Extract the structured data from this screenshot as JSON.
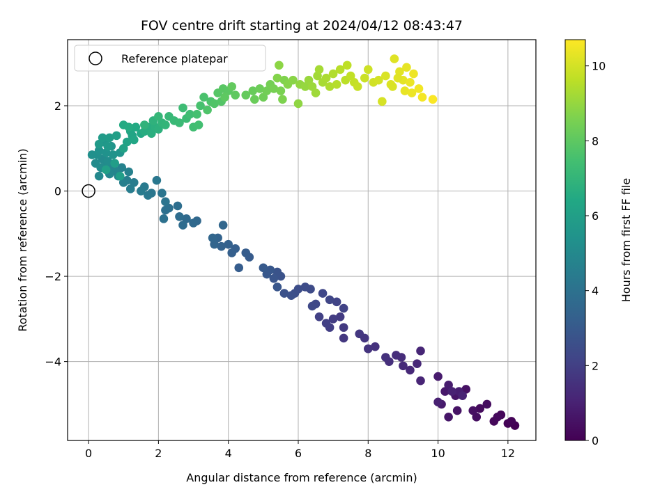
{
  "chart_data": {
    "type": "scatter",
    "title": "FOV centre drift starting at 2024/04/12 08:43:47",
    "xlabel": "Angular distance from reference (arcmin)",
    "ylabel": "Rotation from reference (arcmin)",
    "xlim": [
      -0.6,
      12.8
    ],
    "ylim": [
      -5.85,
      3.55
    ],
    "xticks": [
      0,
      2,
      4,
      6,
      8,
      10,
      12
    ],
    "yticks": [
      -4,
      -2,
      0,
      2
    ],
    "xtick_labels": [
      "0",
      "2",
      "4",
      "6",
      "8",
      "10",
      "12"
    ],
    "ytick_labels": [
      "−4",
      "−2",
      "0",
      "2"
    ],
    "grid": true,
    "legend": {
      "placement": "top-left",
      "entry": "Reference platepar",
      "marker": "open-circle"
    },
    "reference_point": {
      "x": 0,
      "y": 0
    },
    "colormap": "viridis",
    "colorbar": {
      "label": "Hours from first FF file",
      "range": [
        0,
        10.7
      ],
      "ticks": [
        0,
        2,
        4,
        6,
        8,
        10
      ],
      "tick_labels": [
        "0",
        "2",
        "4",
        "6",
        "8",
        "10"
      ]
    },
    "points": [
      [
        12.2,
        -5.5,
        0.0
      ],
      [
        12.0,
        -5.45,
        0.05
      ],
      [
        12.1,
        -5.4,
        0.1
      ],
      [
        11.8,
        -5.25,
        0.15
      ],
      [
        11.6,
        -5.4,
        0.2
      ],
      [
        11.7,
        -5.3,
        0.25
      ],
      [
        11.2,
        -5.1,
        0.3
      ],
      [
        11.4,
        -5.0,
        0.35
      ],
      [
        11.1,
        -5.3,
        0.4
      ],
      [
        11.0,
        -5.15,
        0.45
      ],
      [
        10.8,
        -4.65,
        0.5
      ],
      [
        10.55,
        -5.15,
        0.55
      ],
      [
        10.5,
        -4.8,
        0.6
      ],
      [
        10.3,
        -5.3,
        0.65
      ],
      [
        10.2,
        -4.7,
        0.7
      ],
      [
        10.1,
        -5.0,
        0.75
      ],
      [
        10.0,
        -4.35,
        0.8
      ],
      [
        10.3,
        -4.55,
        0.85
      ],
      [
        10.6,
        -4.7,
        0.9
      ],
      [
        10.0,
        -4.95,
        0.95
      ],
      [
        10.4,
        -4.7,
        1.0
      ],
      [
        10.7,
        -4.8,
        1.05
      ],
      [
        9.5,
        -4.45,
        1.1
      ],
      [
        9.5,
        -3.75,
        1.15
      ],
      [
        9.4,
        -4.05,
        1.2
      ],
      [
        9.2,
        -4.2,
        1.25
      ],
      [
        9.0,
        -4.1,
        1.3
      ],
      [
        8.95,
        -3.9,
        1.35
      ],
      [
        8.8,
        -3.85,
        1.4
      ],
      [
        8.6,
        -4.0,
        1.45
      ],
      [
        8.5,
        -3.9,
        1.5
      ],
      [
        8.2,
        -3.65,
        1.55
      ],
      [
        8.0,
        -3.7,
        1.6
      ],
      [
        7.9,
        -3.45,
        1.65
      ],
      [
        7.75,
        -3.35,
        1.7
      ],
      [
        7.3,
        -3.45,
        1.75
      ],
      [
        7.3,
        -3.2,
        1.8
      ],
      [
        7.2,
        -2.95,
        1.85
      ],
      [
        7.0,
        -3.0,
        1.9
      ],
      [
        6.9,
        -3.2,
        1.95
      ],
      [
        6.8,
        -3.1,
        2.0
      ],
      [
        6.6,
        -2.95,
        2.05
      ],
      [
        7.3,
        -2.75,
        2.1
      ],
      [
        7.1,
        -2.6,
        2.15
      ],
      [
        6.9,
        -2.55,
        2.2
      ],
      [
        6.7,
        -2.4,
        2.25
      ],
      [
        6.5,
        -2.65,
        2.3
      ],
      [
        6.4,
        -2.7,
        2.35
      ],
      [
        6.35,
        -2.3,
        2.4
      ],
      [
        6.2,
        -2.25,
        2.45
      ],
      [
        6.0,
        -2.3,
        2.5
      ],
      [
        5.9,
        -2.4,
        2.55
      ],
      [
        5.8,
        -2.45,
        2.6
      ],
      [
        5.6,
        -2.4,
        2.65
      ],
      [
        5.5,
        -2.0,
        2.7
      ],
      [
        5.4,
        -1.9,
        2.75
      ],
      [
        5.3,
        -2.05,
        2.8
      ],
      [
        5.4,
        -2.25,
        2.85
      ],
      [
        5.2,
        -1.85,
        2.9
      ],
      [
        5.1,
        -1.95,
        2.95
      ],
      [
        5.0,
        -1.8,
        3.0
      ],
      [
        4.6,
        -1.55,
        3.05
      ],
      [
        4.5,
        -1.45,
        3.1
      ],
      [
        4.3,
        -1.8,
        3.15
      ],
      [
        4.2,
        -1.35,
        3.2
      ],
      [
        4.1,
        -1.45,
        3.25
      ],
      [
        4.0,
        -1.25,
        3.3
      ],
      [
        3.8,
        -1.3,
        3.35
      ],
      [
        3.7,
        -1.1,
        3.4
      ],
      [
        3.6,
        -1.25,
        3.45
      ],
      [
        3.55,
        -1.1,
        3.5
      ],
      [
        3.85,
        -0.8,
        3.55
      ],
      [
        3.1,
        -0.7,
        3.6
      ],
      [
        3.0,
        -0.75,
        3.65
      ],
      [
        2.8,
        -0.65,
        3.7
      ],
      [
        2.7,
        -0.8,
        3.75
      ],
      [
        2.6,
        -0.6,
        3.8
      ],
      [
        2.55,
        -0.35,
        3.85
      ],
      [
        2.3,
        -0.4,
        3.9
      ],
      [
        2.2,
        -0.45,
        3.95
      ],
      [
        2.15,
        -0.65,
        4.0
      ],
      [
        2.2,
        -0.25,
        4.1
      ],
      [
        2.1,
        -0.05,
        4.15
      ],
      [
        1.8,
        -0.05,
        4.2
      ],
      [
        1.95,
        0.25,
        4.25
      ],
      [
        1.7,
        -0.1,
        4.3
      ],
      [
        1.6,
        0.1,
        4.35
      ],
      [
        1.5,
        0.0,
        4.4
      ],
      [
        1.3,
        0.2,
        4.45
      ],
      [
        1.2,
        0.05,
        4.5
      ],
      [
        1.1,
        0.25,
        4.55
      ],
      [
        1.0,
        0.2,
        4.6
      ],
      [
        1.15,
        0.45,
        4.65
      ],
      [
        0.95,
        0.55,
        4.7
      ],
      [
        0.85,
        0.35,
        4.75
      ],
      [
        0.8,
        0.45,
        4.8
      ],
      [
        0.7,
        0.55,
        4.85
      ],
      [
        0.6,
        0.4,
        4.9
      ],
      [
        0.3,
        0.35,
        4.95
      ],
      [
        0.5,
        0.6,
        5.0
      ],
      [
        0.4,
        0.75,
        5.05
      ],
      [
        0.2,
        0.65,
        5.1
      ],
      [
        0.35,
        0.55,
        5.15
      ],
      [
        0.55,
        0.7,
        5.2
      ],
      [
        0.25,
        0.85,
        5.25
      ],
      [
        0.1,
        0.85,
        5.3
      ],
      [
        0.3,
        0.95,
        5.35
      ],
      [
        0.5,
        0.9,
        5.4
      ],
      [
        0.7,
        0.85,
        5.45
      ],
      [
        0.9,
        0.9,
        5.5
      ],
      [
        0.65,
        1.05,
        5.55
      ],
      [
        0.45,
        1.15,
        5.6
      ],
      [
        0.55,
        1.05,
        5.7
      ],
      [
        0.3,
        1.1,
        5.75
      ],
      [
        0.4,
        1.25,
        5.8
      ],
      [
        0.6,
        1.25,
        5.85
      ],
      [
        0.75,
        0.65,
        5.9
      ],
      [
        0.9,
        0.35,
        5.95
      ],
      [
        0.8,
        1.3,
        6.0
      ],
      [
        0.5,
        0.5,
        6.05
      ],
      [
        1.0,
        1.0,
        6.1
      ],
      [
        1.1,
        1.15,
        6.15
      ],
      [
        1.25,
        1.3,
        6.2
      ],
      [
        1.2,
        1.4,
        6.3
      ],
      [
        1.3,
        1.2,
        6.35
      ],
      [
        1.5,
        1.35,
        6.4
      ],
      [
        1.35,
        1.5,
        6.45
      ],
      [
        1.0,
        1.55,
        6.5
      ],
      [
        1.15,
        1.5,
        6.55
      ],
      [
        1.6,
        1.4,
        6.6
      ],
      [
        1.7,
        1.5,
        6.65
      ],
      [
        1.8,
        1.35,
        6.7
      ],
      [
        1.9,
        1.5,
        6.75
      ],
      [
        2.0,
        1.45,
        6.8
      ],
      [
        1.85,
        1.65,
        6.85
      ],
      [
        1.6,
        1.55,
        6.9
      ],
      [
        2.1,
        1.6,
        6.95
      ],
      [
        2.2,
        1.55,
        7.0
      ],
      [
        2.0,
        1.75,
        7.05
      ],
      [
        2.3,
        1.75,
        7.1
      ],
      [
        2.45,
        1.65,
        7.15
      ],
      [
        2.6,
        1.6,
        7.2
      ],
      [
        2.8,
        1.7,
        7.25
      ],
      [
        2.7,
        1.95,
        7.3
      ],
      [
        2.9,
        1.8,
        7.35
      ],
      [
        3.0,
        1.5,
        7.4
      ],
      [
        3.15,
        1.55,
        7.45
      ],
      [
        3.1,
        1.8,
        7.5
      ],
      [
        3.2,
        2.0,
        7.55
      ],
      [
        3.3,
        2.2,
        7.6
      ],
      [
        3.5,
        2.1,
        7.65
      ],
      [
        3.4,
        1.9,
        7.7
      ],
      [
        3.6,
        2.05,
        7.75
      ],
      [
        3.8,
        2.1,
        7.8
      ],
      [
        3.7,
        2.3,
        7.85
      ],
      [
        3.85,
        2.4,
        7.9
      ],
      [
        4.0,
        2.35,
        7.95
      ],
      [
        3.9,
        2.2,
        8.0
      ],
      [
        4.2,
        2.25,
        8.05
      ],
      [
        4.1,
        2.45,
        8.1
      ],
      [
        4.5,
        2.25,
        8.15
      ],
      [
        4.7,
        2.35,
        8.2
      ],
      [
        4.75,
        2.15,
        8.25
      ],
      [
        4.9,
        2.4,
        8.3
      ],
      [
        5.0,
        2.2,
        8.35
      ],
      [
        5.1,
        2.35,
        8.4
      ],
      [
        5.2,
        2.5,
        8.45
      ],
      [
        5.3,
        2.4,
        8.5
      ],
      [
        5.5,
        2.35,
        8.55
      ],
      [
        5.55,
        2.15,
        8.6
      ],
      [
        5.6,
        2.6,
        8.65
      ],
      [
        5.4,
        2.65,
        8.7
      ],
      [
        5.7,
        2.5,
        8.75
      ],
      [
        5.85,
        2.6,
        8.8
      ],
      [
        5.45,
        2.95,
        8.85
      ],
      [
        6.0,
        2.05,
        8.9
      ],
      [
        6.05,
        2.5,
        8.95
      ],
      [
        6.2,
        2.45,
        9.0
      ],
      [
        6.3,
        2.6,
        9.05
      ],
      [
        6.4,
        2.45,
        9.1
      ],
      [
        6.5,
        2.3,
        9.15
      ],
      [
        6.55,
        2.7,
        9.2
      ],
      [
        6.6,
        2.85,
        9.25
      ],
      [
        6.7,
        2.55,
        9.3
      ],
      [
        6.8,
        2.65,
        9.35
      ],
      [
        6.9,
        2.45,
        9.4
      ],
      [
        7.0,
        2.75,
        9.45
      ],
      [
        7.1,
        2.5,
        9.5
      ],
      [
        7.2,
        2.85,
        9.55
      ],
      [
        7.35,
        2.6,
        9.6
      ],
      [
        7.4,
        2.95,
        9.65
      ],
      [
        7.5,
        2.7,
        9.7
      ],
      [
        7.6,
        2.55,
        9.75
      ],
      [
        7.7,
        2.45,
        9.8
      ],
      [
        7.9,
        2.65,
        9.85
      ],
      [
        8.0,
        2.85,
        9.9
      ],
      [
        8.15,
        2.55,
        9.95
      ],
      [
        8.3,
        2.6,
        10.0
      ],
      [
        8.4,
        2.1,
        10.05
      ],
      [
        8.5,
        2.7,
        10.1
      ],
      [
        8.65,
        2.5,
        10.15
      ],
      [
        8.75,
        3.1,
        10.2
      ],
      [
        8.9,
        2.8,
        10.25
      ],
      [
        9.0,
        2.6,
        10.3
      ],
      [
        9.05,
        2.35,
        10.35
      ],
      [
        9.2,
        2.55,
        10.4
      ],
      [
        9.3,
        2.75,
        10.45
      ],
      [
        9.45,
        2.4,
        10.5
      ],
      [
        9.55,
        2.2,
        10.55
      ],
      [
        9.85,
        2.15,
        10.65
      ],
      [
        8.7,
        2.45,
        10.1
      ],
      [
        8.85,
        2.65,
        10.22
      ],
      [
        9.1,
        2.9,
        10.32
      ],
      [
        9.25,
        2.3,
        10.42
      ]
    ]
  }
}
